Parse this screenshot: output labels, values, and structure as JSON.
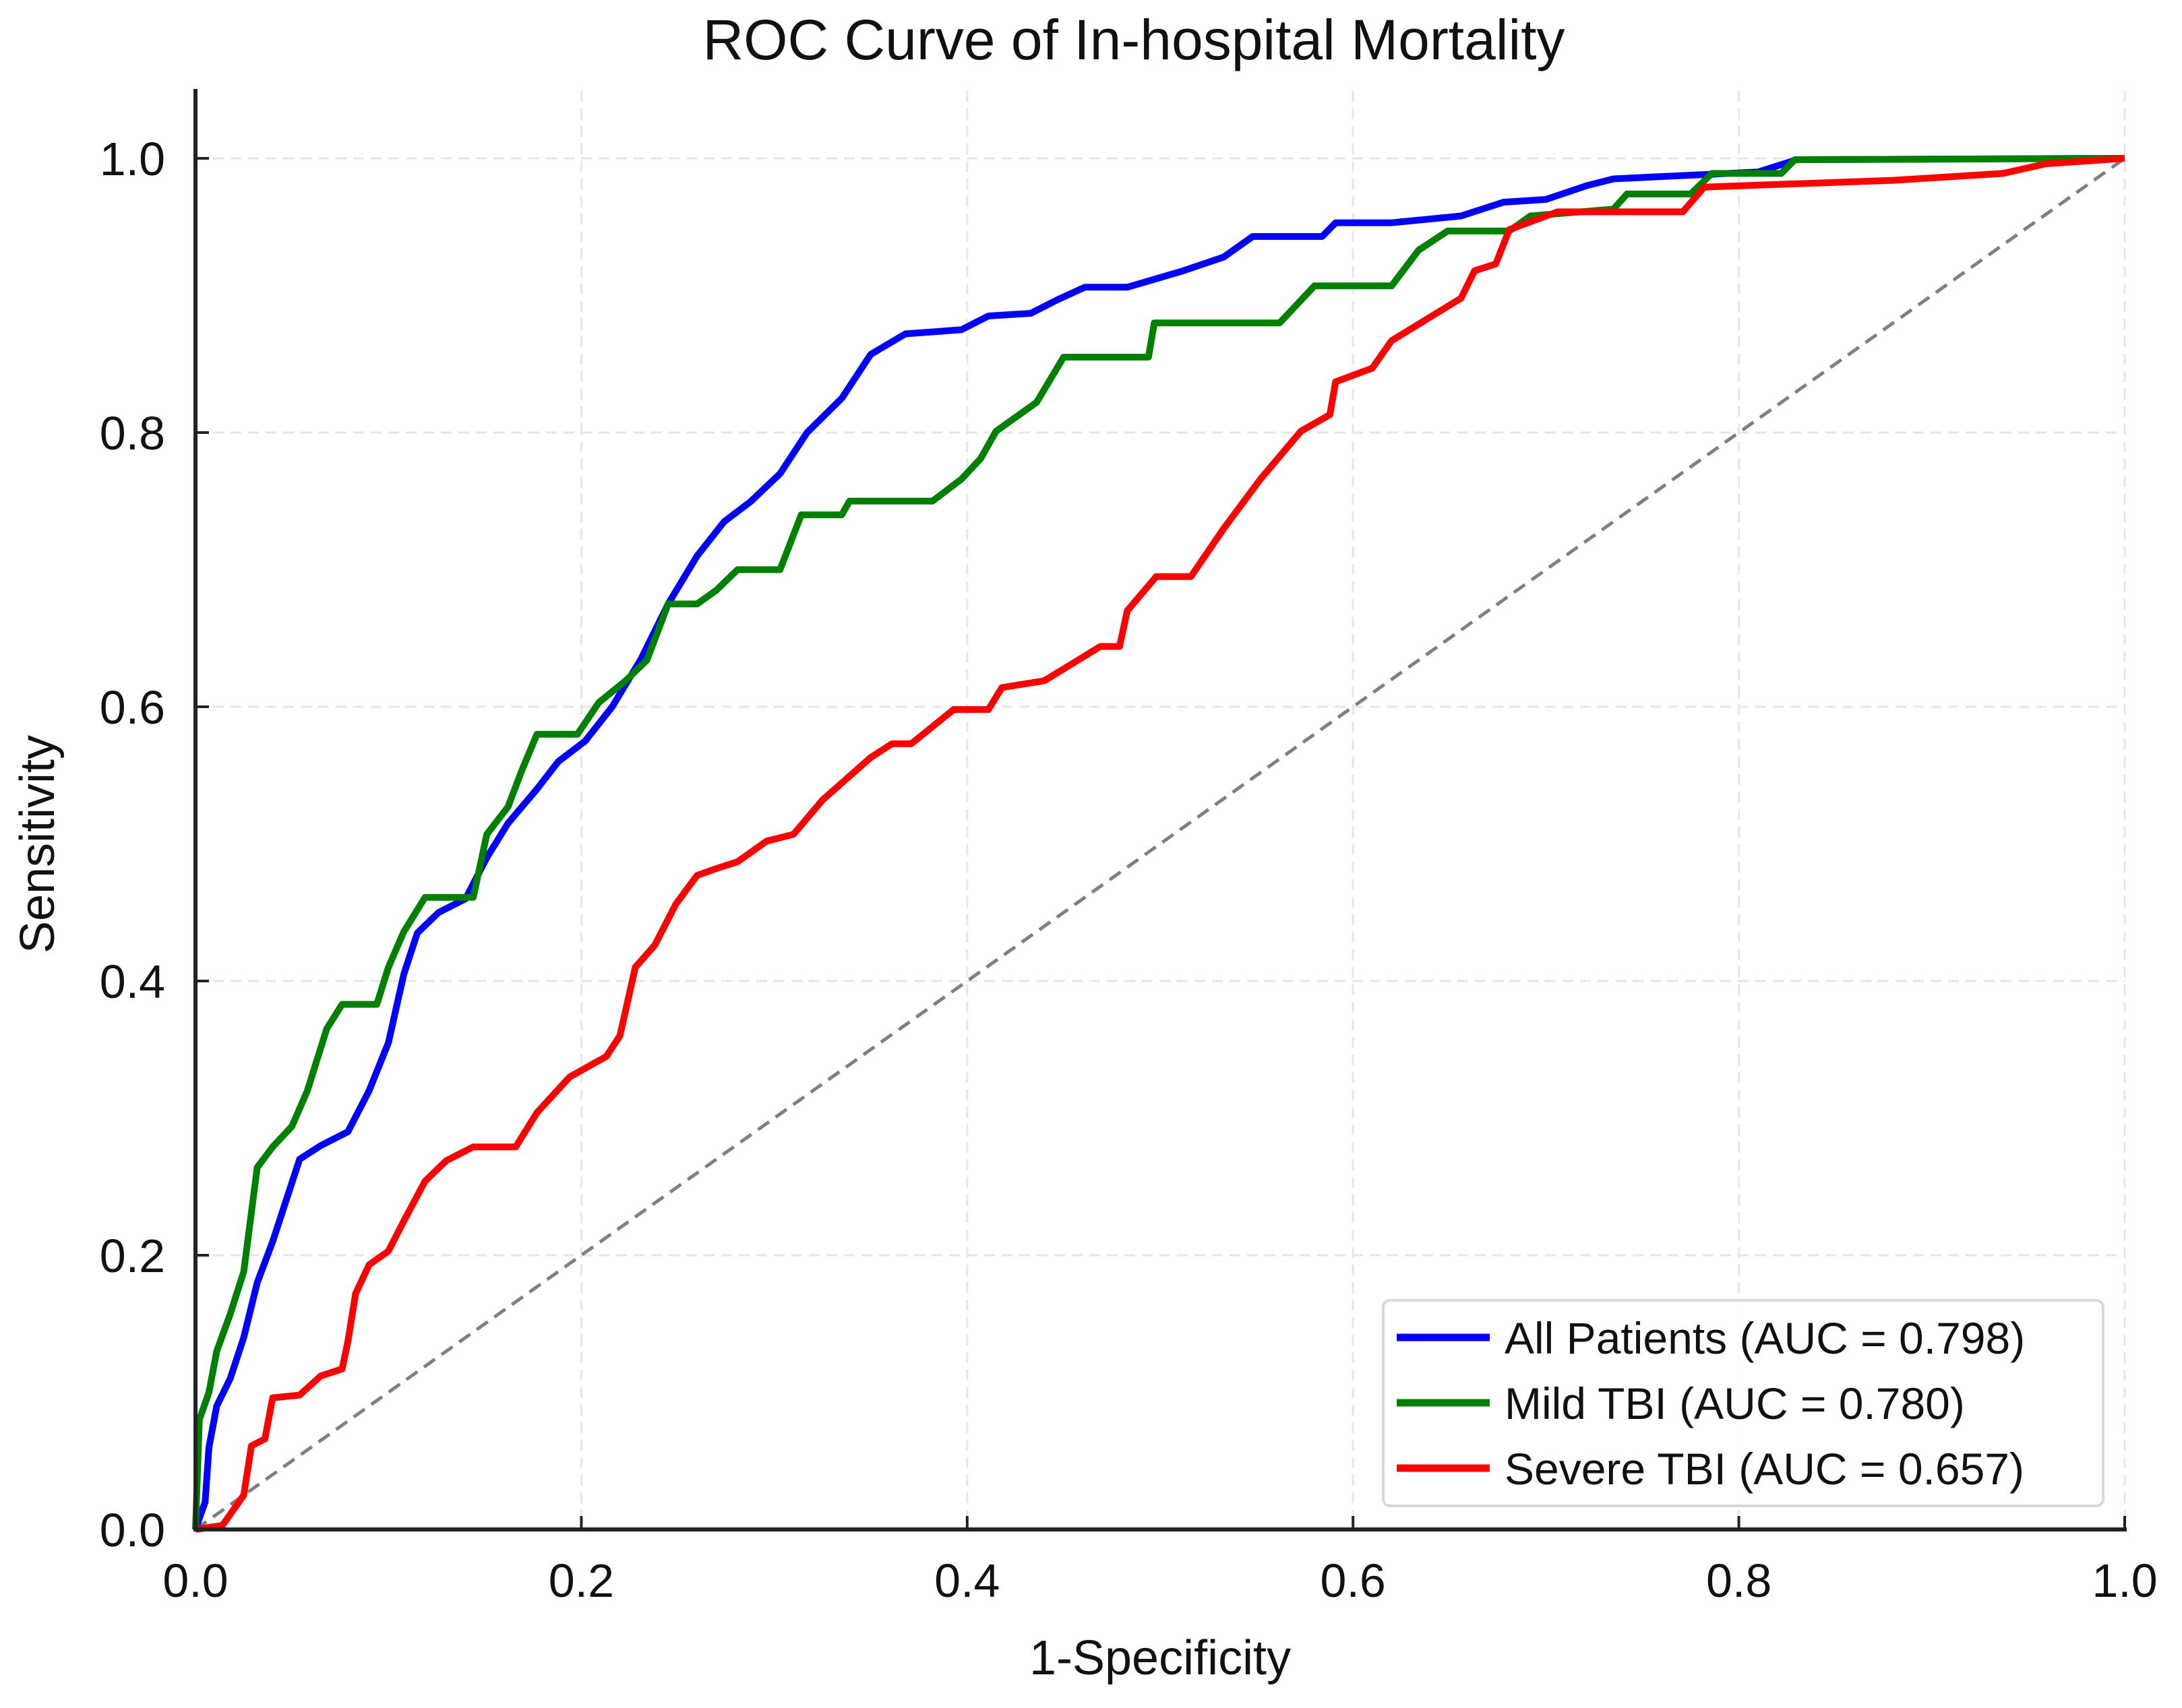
{
  "chart_data": {
    "type": "line",
    "title": "ROC Curve of In-hospital Mortality",
    "xlabel": "1-Specificity",
    "ylabel": "Sensitivity",
    "xlim": [
      0,
      1
    ],
    "ylim": [
      0,
      1
    ],
    "xticks": [
      "0.0",
      "0.2",
      "0.4",
      "0.6",
      "0.8",
      "1.0"
    ],
    "yticks": [
      "0.0",
      "0.2",
      "0.4",
      "0.6",
      "0.8",
      "1.0"
    ],
    "grid": true,
    "legend_position": "bottom-right",
    "reference_line": {
      "name": "chance",
      "color": "#808080",
      "style": "dashed",
      "x": [
        0,
        1
      ],
      "y": [
        0,
        1
      ]
    },
    "series": [
      {
        "name": "All Patients (AUC = 0.798)",
        "color": "#0000ff",
        "x": [
          0,
          0.005,
          0.007,
          0.011,
          0.018,
          0.025,
          0.032,
          0.04,
          0.047,
          0.054,
          0.065,
          0.079,
          0.09,
          0.1,
          0.108,
          0.115,
          0.126,
          0.14,
          0.151,
          0.162,
          0.177,
          0.188,
          0.202,
          0.216,
          0.231,
          0.245,
          0.26,
          0.274,
          0.288,
          0.303,
          0.317,
          0.335,
          0.35,
          0.368,
          0.397,
          0.411,
          0.433,
          0.447,
          0.461,
          0.483,
          0.512,
          0.533,
          0.548,
          0.584,
          0.591,
          0.62,
          0.656,
          0.678,
          0.7,
          0.721,
          0.735,
          0.764,
          0.81,
          0.83,
          1
        ],
        "y": [
          0,
          0.02,
          0.06,
          0.09,
          0.11,
          0.14,
          0.18,
          0.21,
          0.24,
          0.27,
          0.28,
          0.29,
          0.32,
          0.355,
          0.405,
          0.435,
          0.45,
          0.46,
          0.49,
          0.515,
          0.54,
          0.56,
          0.575,
          0.6,
          0.635,
          0.675,
          0.71,
          0.735,
          0.75,
          0.77,
          0.8,
          0.825,
          0.857,
          0.872,
          0.875,
          0.885,
          0.887,
          0.897,
          0.906,
          0.906,
          0.918,
          0.928,
          0.943,
          0.943,
          0.953,
          0.953,
          0.958,
          0.968,
          0.97,
          0.98,
          0.985,
          0.987,
          0.99,
          0.999,
          1
        ]
      },
      {
        "name": "Mild TBI (AUC = 0.780)",
        "color": "#008000",
        "x": [
          0,
          0.002,
          0.007,
          0.011,
          0.018,
          0.025,
          0.032,
          0.04,
          0.05,
          0.058,
          0.068,
          0.076,
          0.094,
          0.1,
          0.108,
          0.119,
          0.144,
          0.151,
          0.162,
          0.169,
          0.177,
          0.198,
          0.209,
          0.223,
          0.234,
          0.245,
          0.26,
          0.27,
          0.281,
          0.303,
          0.314,
          0.335,
          0.339,
          0.382,
          0.397,
          0.407,
          0.415,
          0.425,
          0.436,
          0.45,
          0.494,
          0.497,
          0.562,
          0.58,
          0.62,
          0.634,
          0.649,
          0.681,
          0.692,
          0.735,
          0.742,
          0.775,
          0.786,
          0.822,
          0.829,
          1
        ],
        "y": [
          0,
          0.08,
          0.1,
          0.13,
          0.157,
          0.188,
          0.264,
          0.279,
          0.294,
          0.32,
          0.365,
          0.383,
          0.383,
          0.41,
          0.436,
          0.461,
          0.461,
          0.507,
          0.527,
          0.553,
          0.58,
          0.58,
          0.603,
          0.619,
          0.634,
          0.675,
          0.675,
          0.685,
          0.7,
          0.7,
          0.74,
          0.74,
          0.75,
          0.75,
          0.766,
          0.781,
          0.801,
          0.811,
          0.822,
          0.855,
          0.855,
          0.88,
          0.88,
          0.907,
          0.907,
          0.933,
          0.947,
          0.947,
          0.958,
          0.963,
          0.974,
          0.974,
          0.989,
          0.989,
          0.999,
          1
        ]
      },
      {
        "name": "Severe TBI (AUC = 0.657)",
        "color": "#ff0000",
        "x": [
          0,
          0.014,
          0.025,
          0.029,
          0.036,
          0.04,
          0.054,
          0.065,
          0.076,
          0.079,
          0.083,
          0.09,
          0.1,
          0.108,
          0.119,
          0.13,
          0.144,
          0.166,
          0.177,
          0.194,
          0.213,
          0.22,
          0.228,
          0.238,
          0.249,
          0.26,
          0.27,
          0.281,
          0.296,
          0.31,
          0.325,
          0.35,
          0.361,
          0.371,
          0.393,
          0.411,
          0.418,
          0.44,
          0.454,
          0.469,
          0.479,
          0.483,
          0.498,
          0.516,
          0.533,
          0.552,
          0.573,
          0.588,
          0.591,
          0.61,
          0.62,
          0.656,
          0.663,
          0.674,
          0.681,
          0.706,
          0.771,
          0.782,
          0.88,
          0.937,
          0.959,
          1
        ],
        "y": [
          0,
          0.003,
          0.025,
          0.061,
          0.066,
          0.096,
          0.098,
          0.112,
          0.117,
          0.137,
          0.172,
          0.193,
          0.203,
          0.225,
          0.254,
          0.269,
          0.279,
          0.279,
          0.304,
          0.33,
          0.345,
          0.36,
          0.41,
          0.426,
          0.456,
          0.477,
          0.482,
          0.487,
          0.502,
          0.507,
          0.532,
          0.563,
          0.573,
          0.573,
          0.598,
          0.598,
          0.614,
          0.619,
          0.631,
          0.644,
          0.644,
          0.67,
          0.695,
          0.695,
          0.73,
          0.766,
          0.801,
          0.813,
          0.837,
          0.847,
          0.867,
          0.898,
          0.918,
          0.923,
          0.948,
          0.961,
          0.961,
          0.979,
          0.984,
          0.989,
          0.996,
          1
        ]
      }
    ]
  }
}
